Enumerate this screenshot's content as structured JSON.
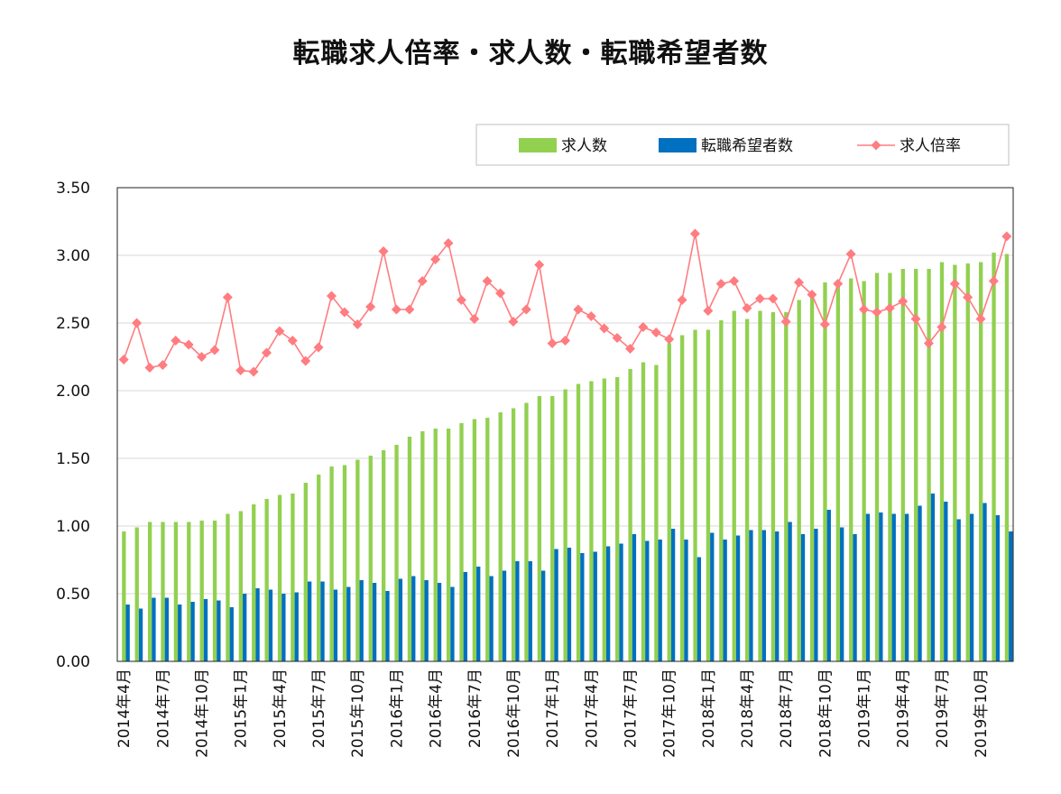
{
  "chart_data": {
    "type": "bar",
    "title": "転職求人倍率・求人数・転職希望者数",
    "xlabel": "",
    "ylabel": "",
    "ylim": [
      0,
      3.5
    ],
    "yticks": [
      "0.00",
      "0.50",
      "1.00",
      "1.50",
      "2.00",
      "2.50",
      "3.00",
      "3.50"
    ],
    "x_tick_labels": [
      "2014年4月",
      "2014年7月",
      "2014年10月",
      "2015年1月",
      "2015年4月",
      "2015年7月",
      "2015年10月",
      "2016年1月",
      "2016年4月",
      "2016年7月",
      "2016年10月",
      "2017年1月",
      "2017年4月",
      "2017年7月",
      "2017年10月",
      "2018年1月",
      "2018年4月",
      "2018年7月",
      "2018年10月",
      "2019年1月",
      "2019年4月",
      "2019年7月",
      "2019年10月"
    ],
    "legend_position": "top-right",
    "grid": true,
    "series": [
      {
        "name": "求人数",
        "type": "bar",
        "color": "#92d050",
        "values": [
          0.96,
          0.99,
          1.03,
          1.03,
          1.03,
          1.03,
          1.04,
          1.04,
          1.09,
          1.11,
          1.16,
          1.2,
          1.23,
          1.24,
          1.32,
          1.38,
          1.44,
          1.45,
          1.49,
          1.52,
          1.56,
          1.6,
          1.66,
          1.7,
          1.72,
          1.72,
          1.76,
          1.79,
          1.8,
          1.84,
          1.87,
          1.91,
          1.96,
          1.96,
          2.01,
          2.05,
          2.07,
          2.09,
          2.1,
          2.16,
          2.21,
          2.19,
          2.35,
          2.41,
          2.45,
          2.45,
          2.52,
          2.59,
          2.53,
          2.59,
          2.58,
          2.58,
          2.67,
          2.73,
          2.8,
          2.81,
          2.83,
          2.81,
          2.87,
          2.87,
          2.9,
          2.9,
          2.9,
          2.95,
          2.93,
          2.94,
          2.95,
          3.02,
          3.01
        ]
      },
      {
        "name": "転職希望者数",
        "type": "bar",
        "color": "#0070c0",
        "values": [
          0.42,
          0.39,
          0.47,
          0.47,
          0.42,
          0.44,
          0.46,
          0.45,
          0.4,
          0.5,
          0.54,
          0.53,
          0.5,
          0.51,
          0.59,
          0.59,
          0.53,
          0.55,
          0.6,
          0.58,
          0.52,
          0.61,
          0.63,
          0.6,
          0.58,
          0.55,
          0.66,
          0.7,
          0.63,
          0.67,
          0.74,
          0.74,
          0.67,
          0.83,
          0.84,
          0.8,
          0.81,
          0.85,
          0.87,
          0.94,
          0.89,
          0.9,
          0.98,
          0.9,
          0.77,
          0.95,
          0.9,
          0.93,
          0.97,
          0.97,
          0.96,
          1.03,
          0.94,
          0.98,
          1.12,
          0.99,
          0.94,
          1.09,
          1.1,
          1.09,
          1.09,
          1.15,
          1.24,
          1.18,
          1.05,
          1.09,
          1.17,
          1.08,
          0.96
        ]
      },
      {
        "name": "求人倍率",
        "type": "line",
        "color": "#ff7c80",
        "values": [
          2.23,
          2.5,
          2.17,
          2.19,
          2.37,
          2.34,
          2.25,
          2.3,
          2.69,
          2.15,
          2.14,
          2.28,
          2.44,
          2.37,
          2.22,
          2.32,
          2.7,
          2.58,
          2.49,
          2.62,
          3.03,
          2.6,
          2.6,
          2.81,
          2.97,
          3.09,
          2.67,
          2.53,
          2.81,
          2.72,
          2.51,
          2.6,
          2.93,
          2.35,
          2.37,
          2.6,
          2.55,
          2.46,
          2.39,
          2.31,
          2.47,
          2.43,
          2.38,
          2.67,
          3.16,
          2.59,
          2.79,
          2.81,
          2.61,
          2.68,
          2.68,
          2.51,
          2.8,
          2.71,
          2.49,
          2.79,
          3.01,
          2.6,
          2.58,
          2.61,
          2.66,
          2.53,
          2.35,
          2.47,
          2.79,
          2.69,
          2.53,
          2.81,
          3.14
        ]
      }
    ]
  }
}
